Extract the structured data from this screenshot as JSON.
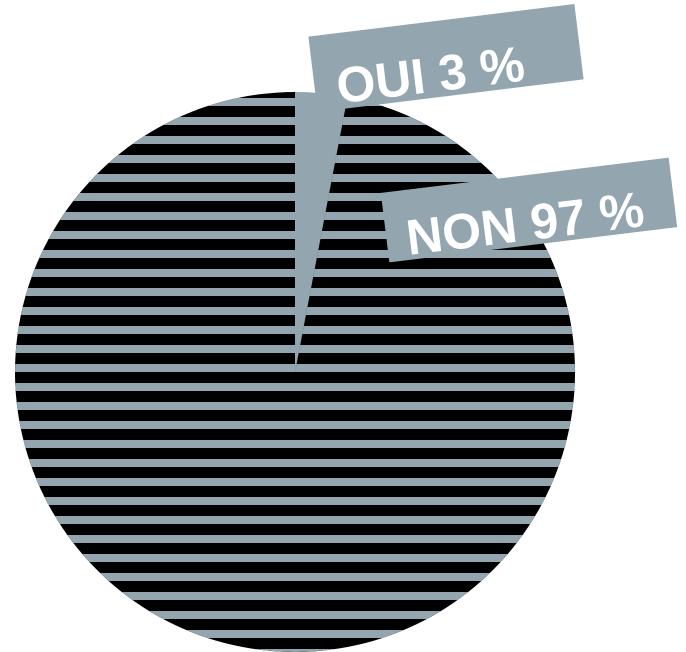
{
  "chart_data": {
    "type": "pie",
    "categories": [
      "OUI",
      "NON"
    ],
    "values": [
      3,
      97
    ],
    "unit": "%",
    "slices": [
      {
        "label": "OUI",
        "value": 3,
        "display": "OUI 3 %",
        "color": "#93a5ae"
      },
      {
        "label": "NON",
        "value": 97,
        "display": "NON 97 %",
        "color": "#000000"
      }
    ],
    "stripe_color": "#93a5ae",
    "title": "",
    "legend": "none"
  }
}
